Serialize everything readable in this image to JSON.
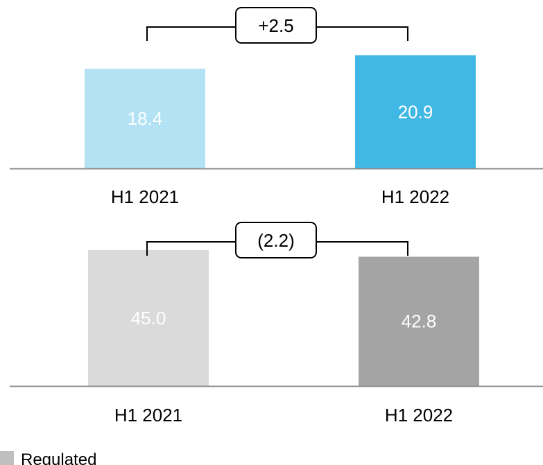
{
  "chart_data": [
    {
      "type": "bar",
      "categories": [
        "H1 2021",
        "H1 2022"
      ],
      "values": [
        18.4,
        20.9
      ],
      "value_labels": [
        "18.4",
        "20.9"
      ],
      "colors": [
        "#b3e2f4",
        "#40b8e5"
      ],
      "delta_label": "+2.5",
      "ylim": [
        0,
        21.5
      ]
    },
    {
      "type": "bar",
      "categories": [
        "H1 2021",
        "H1 2022"
      ],
      "values": [
        45.0,
        42.8
      ],
      "value_labels": [
        "45.0",
        "42.8"
      ],
      "colors": [
        "#dadada",
        "#a4a4a4"
      ],
      "delta_label": "(2.2)",
      "ylim": [
        0,
        47.5
      ]
    }
  ],
  "legend": [
    {
      "label": "Regulated",
      "color": "#bfbfbf"
    }
  ]
}
